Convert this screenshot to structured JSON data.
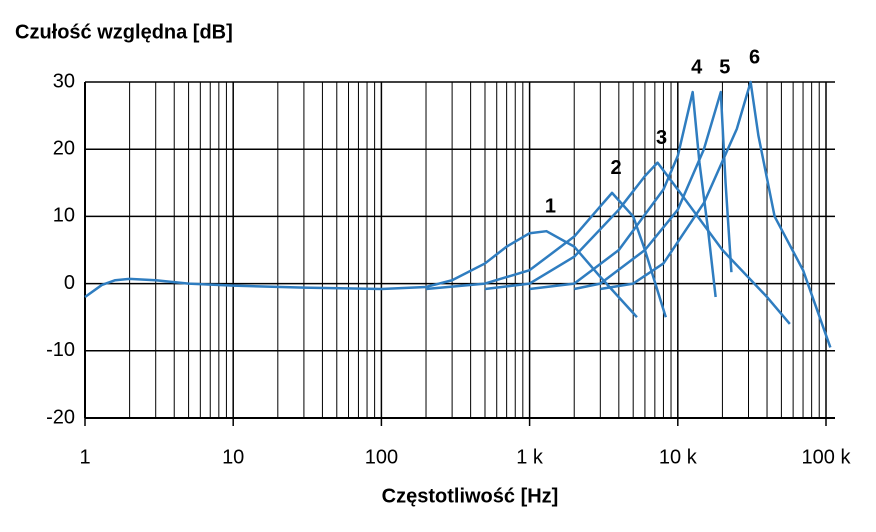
{
  "chart_data": {
    "type": "line",
    "title": "Czułość względna [dB]",
    "xlabel": "Częstotliwość [Hz]",
    "log_x": true,
    "grid": true,
    "xlim": [
      1,
      115000
    ],
    "ylim": [
      -20,
      30
    ],
    "xticks": [
      1,
      10,
      100,
      {
        "value": 1000,
        "label": "1 k"
      },
      {
        "value": 10000,
        "label": "10 k"
      },
      {
        "value": 100000,
        "label": "100 k"
      }
    ],
    "xminor": [
      2,
      3,
      4,
      5,
      6,
      7,
      8,
      9,
      20,
      30,
      40,
      50,
      60,
      70,
      80,
      90,
      200,
      300,
      400,
      500,
      600,
      700,
      800,
      900,
      2000,
      3000,
      4000,
      5000,
      6000,
      7000,
      8000,
      9000,
      20000,
      30000,
      40000,
      50000,
      60000,
      70000,
      80000,
      90000
    ],
    "yticks": [
      -20,
      -10,
      0,
      10,
      20,
      30
    ],
    "series": [
      {
        "name": "1",
        "color": "#2f7dc0",
        "x": [
          1,
          1.3,
          1.6,
          2,
          3,
          5,
          10,
          30,
          100,
          200,
          300,
          500,
          700,
          1000,
          1300,
          2000,
          3000,
          5300
        ],
        "values": [
          -2,
          -0.2,
          0.5,
          0.7,
          0.5,
          0,
          -0.3,
          -0.6,
          -0.8,
          -0.5,
          0.5,
          3,
          5.5,
          7.5,
          7.8,
          5.5,
          1,
          -5
        ]
      },
      {
        "name": "2",
        "color": "#2f7dc0",
        "x": [
          200,
          500,
          1000,
          2000,
          3000,
          3600,
          5000,
          6000,
          8300
        ],
        "values": [
          -0.8,
          0,
          2,
          7,
          11.5,
          13.5,
          10,
          5,
          -5
        ]
      },
      {
        "name": "3",
        "color": "#2f7dc0",
        "x": [
          500,
          1000,
          2000,
          4000,
          6000,
          7300,
          10000,
          20000,
          40000,
          57000
        ],
        "values": [
          -0.8,
          0,
          4,
          11,
          16,
          18,
          14,
          5,
          -2,
          -6
        ]
      },
      {
        "name": "4",
        "color": "#2f7dc0",
        "x": [
          1000,
          2000,
          4000,
          8000,
          10000,
          12600,
          14000,
          16000,
          18000
        ],
        "values": [
          -0.8,
          0,
          5,
          14,
          19,
          28.5,
          18,
          8,
          -2
        ]
      },
      {
        "name": "5",
        "color": "#2f7dc0",
        "x": [
          2000,
          3000,
          6000,
          10000,
          15000,
          19500,
          21000,
          23000
        ],
        "values": [
          -0.8,
          0,
          5,
          11,
          20,
          28.5,
          15,
          1.7
        ]
      },
      {
        "name": "6",
        "color": "#2f7dc0",
        "x": [
          3000,
          5000,
          8000,
          15000,
          25000,
          31000,
          35000,
          45000,
          70000,
          107000
        ],
        "values": [
          -0.8,
          0,
          3,
          12,
          23,
          30,
          22,
          10,
          2,
          -9.5
        ]
      }
    ]
  }
}
